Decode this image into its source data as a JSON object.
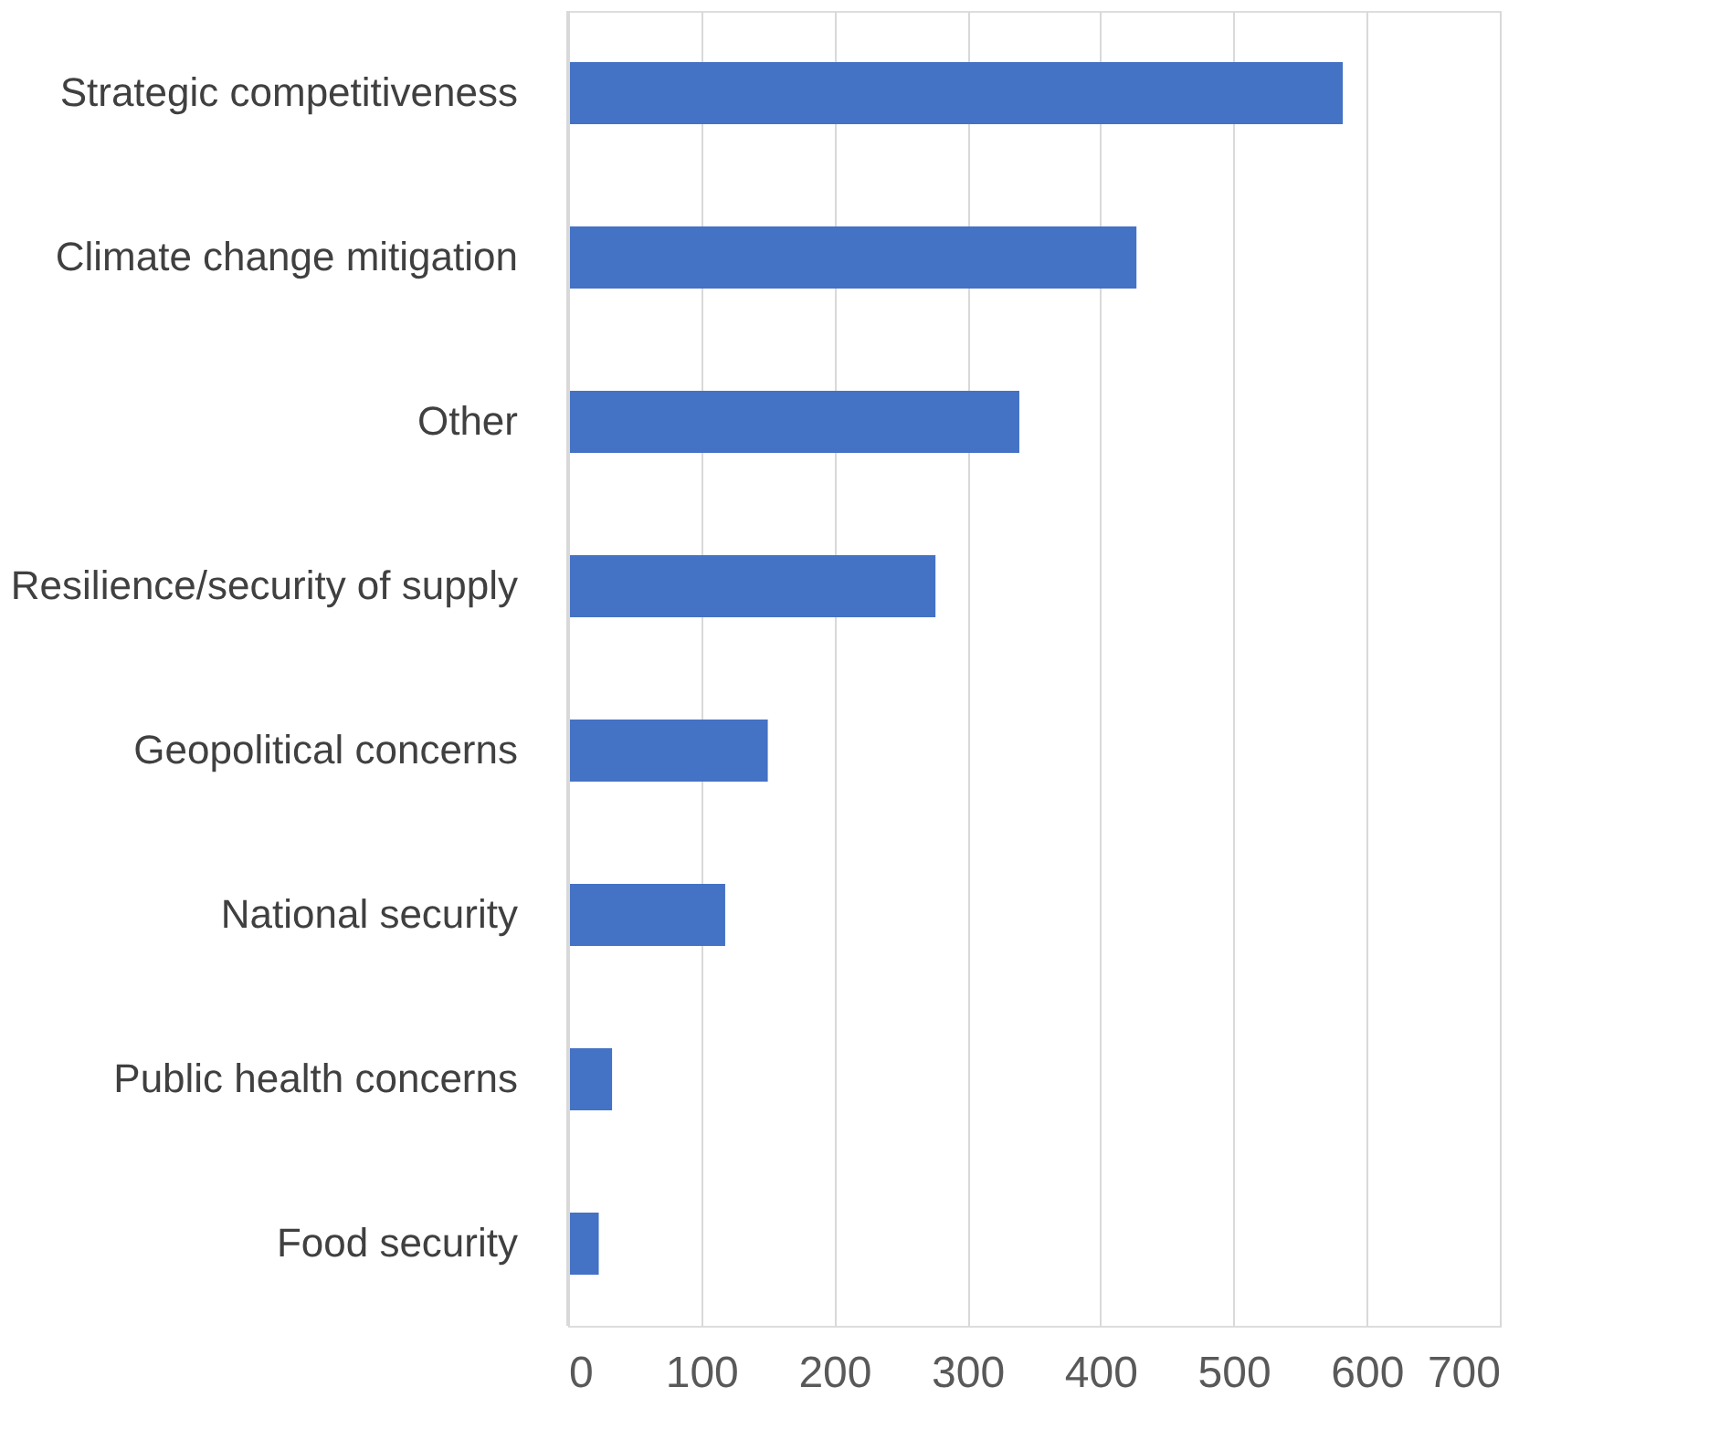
{
  "chart_data": {
    "type": "bar",
    "orientation": "horizontal",
    "categories": [
      "Strategic competitiveness",
      "Climate change mitigation",
      "Other",
      "Resilience/security of supply",
      "Geopolitical concerns",
      "National security",
      "Public health concerns",
      "Food security"
    ],
    "values": [
      582,
      427,
      339,
      276,
      150,
      118,
      33,
      23
    ],
    "color": "#4472c4",
    "xlim": [
      0,
      700
    ],
    "xticks": [
      0,
      100,
      200,
      300,
      400,
      500,
      600,
      700
    ],
    "grid": "x"
  }
}
